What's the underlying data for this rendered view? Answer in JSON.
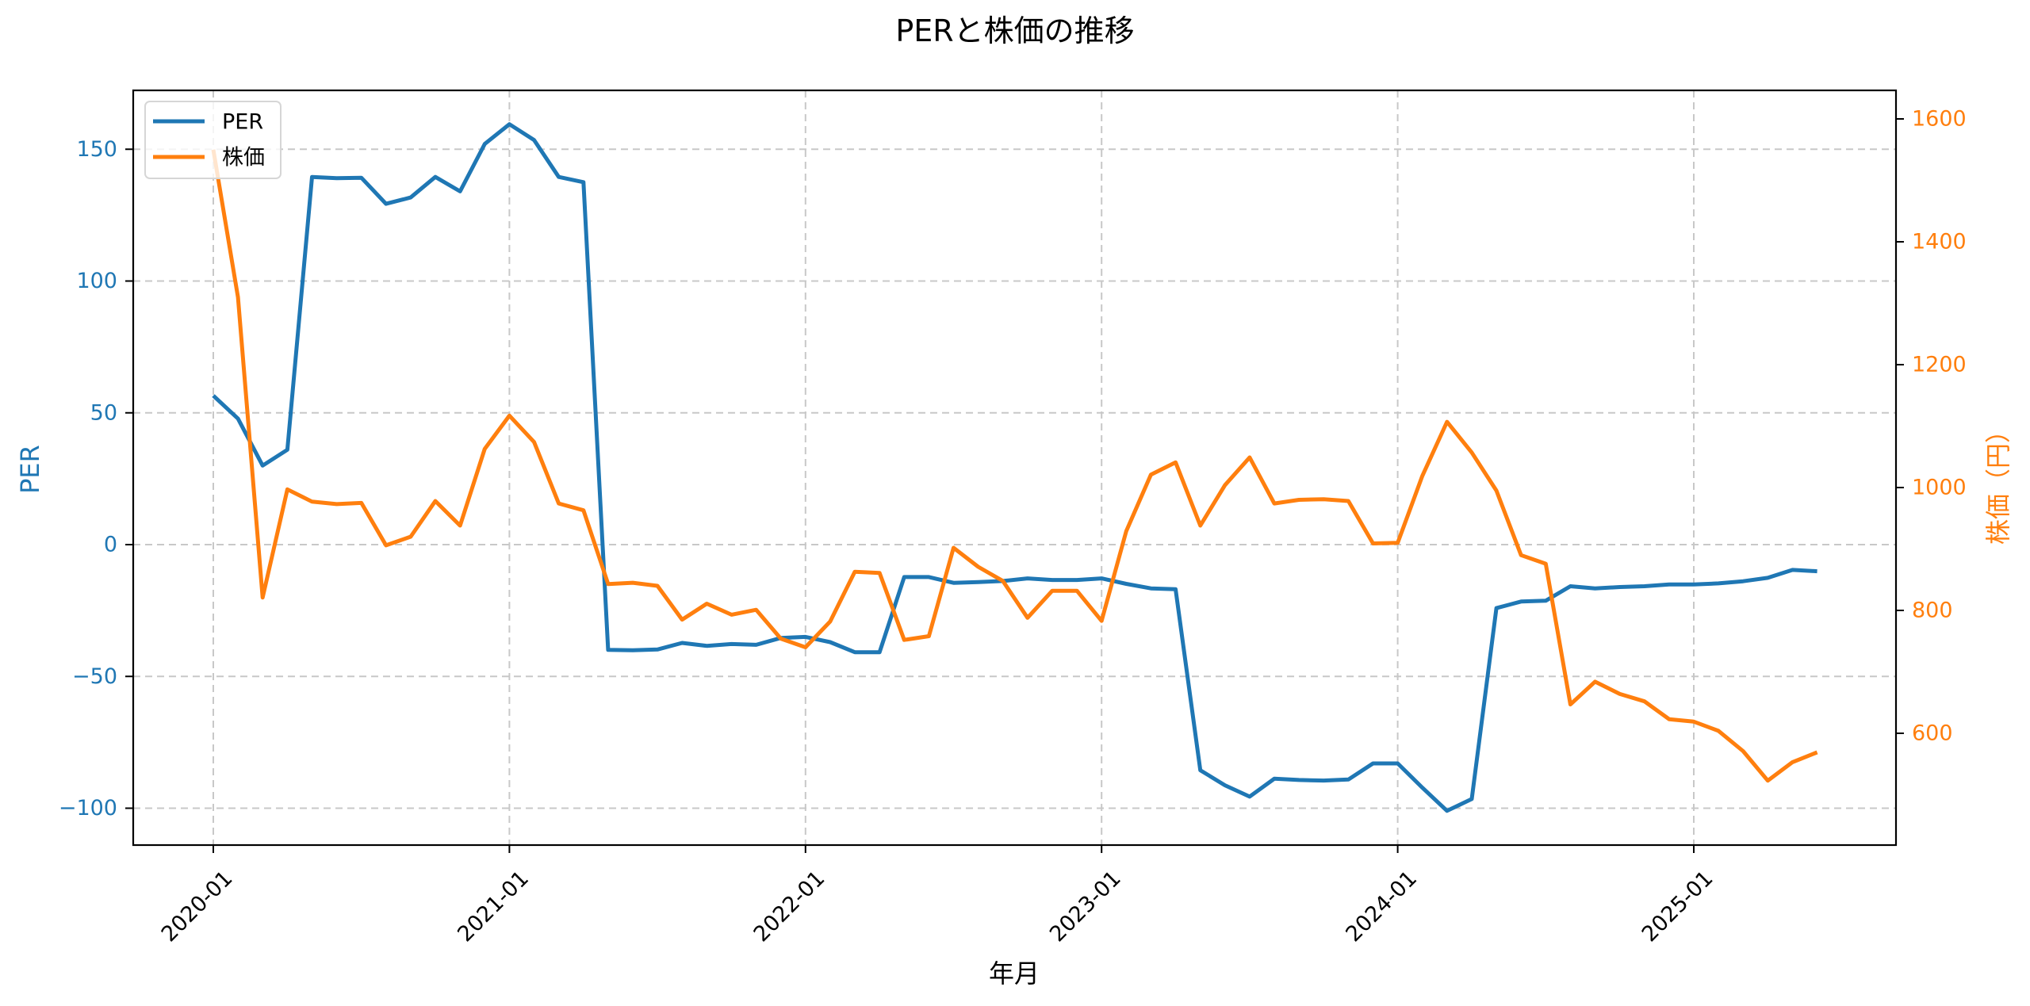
{
  "chart_data": {
    "type": "line",
    "title": "PERと株価の推移",
    "xlabel": "年月",
    "ylabel_left": "PER",
    "ylabel_right": "株価（円）",
    "colors": {
      "PER": "#1f77b4",
      "price": "#ff7f0e"
    },
    "x_ticks": [
      "2020-01",
      "2021-01",
      "2022-01",
      "2023-01",
      "2024-01",
      "2025-01"
    ],
    "y_left_ticks": [
      -100,
      -50,
      0,
      50,
      100,
      150
    ],
    "y_left_tick_labels": [
      "−100",
      "−50",
      "0",
      "50",
      "100",
      "150"
    ],
    "y_right_ticks": [
      600,
      800,
      1000,
      1200,
      1400,
      1600
    ],
    "y_right_tick_labels": [
      "600",
      "800",
      "1000",
      "1200",
      "1400",
      "1600"
    ],
    "ylim_left": [
      -114,
      172
    ],
    "ylim_right": [
      418,
      1646
    ],
    "grid": true,
    "legend": {
      "position": "upper left",
      "entries": [
        "PER",
        "株価"
      ]
    },
    "x": [
      "2020-01",
      "2020-02",
      "2020-03",
      "2020-04",
      "2020-05",
      "2020-06",
      "2020-07",
      "2020-08",
      "2020-09",
      "2020-10",
      "2020-11",
      "2020-12",
      "2021-01",
      "2021-02",
      "2021-03",
      "2021-04",
      "2021-05",
      "2021-06",
      "2021-07",
      "2021-08",
      "2021-09",
      "2021-10",
      "2021-11",
      "2021-12",
      "2022-01",
      "2022-02",
      "2022-03",
      "2022-04",
      "2022-05",
      "2022-06",
      "2022-07",
      "2022-08",
      "2022-09",
      "2022-10",
      "2022-11",
      "2022-12",
      "2023-01",
      "2023-02",
      "2023-03",
      "2023-04",
      "2023-05",
      "2023-06",
      "2023-07",
      "2023-08",
      "2023-09",
      "2023-10",
      "2023-11",
      "2023-12",
      "2024-01",
      "2024-02",
      "2024-03",
      "2024-04",
      "2024-05",
      "2024-06",
      "2024-07",
      "2024-08",
      "2024-09",
      "2024-10",
      "2024-11",
      "2024-12",
      "2025-01",
      "2025-02",
      "2025-03",
      "2025-04",
      "2025-05",
      "2025-06"
    ],
    "series": [
      {
        "name": "PER",
        "axis": "left",
        "values": [
          56.5,
          47.8,
          30,
          36,
          139.5,
          139,
          139.2,
          129.3,
          131.7,
          139.5,
          134,
          152,
          159.5,
          153.5,
          139.5,
          137.5,
          -39.9,
          -40.1,
          -39.8,
          -37.3,
          -38.4,
          -37.7,
          -38,
          -35.4,
          -35,
          -37,
          -40.8,
          -40.8,
          -12.3,
          -12.3,
          -14.5,
          -14.2,
          -13.8,
          -12.8,
          -13.4,
          -13.4,
          -12.8,
          -14.9,
          -16.6,
          -16.9,
          -85.6,
          -91.3,
          -95.6,
          -88.8,
          -89.3,
          -89.5,
          -89.1,
          -83,
          -83,
          -92.2,
          -101,
          -96.5,
          -24.1,
          -21.6,
          -21.3,
          -15.8,
          -16.6,
          -16.1,
          -15.8,
          -15.1,
          -15.1,
          -14.7,
          -13.9,
          -12.6,
          -9.6,
          -10.1
        ]
      },
      {
        "name": "株価",
        "axis": "right",
        "values": [
          1550,
          1310,
          821,
          997,
          977,
          973,
          975,
          906,
          920,
          978,
          938,
          1063,
          1117,
          1074,
          974,
          963,
          843,
          845,
          840,
          785,
          811,
          793,
          801,
          754,
          740,
          782,
          863,
          861,
          752,
          758,
          902,
          871,
          848,
          788,
          832,
          832,
          783,
          929,
          1021,
          1041,
          938,
          1004,
          1049,
          974,
          980,
          981,
          978,
          909,
          910,
          1019,
          1107,
          1057,
          995,
          890,
          876,
          647,
          684,
          664,
          652,
          623,
          619,
          604,
          571,
          523,
          553,
          569
        ]
      }
    ]
  }
}
